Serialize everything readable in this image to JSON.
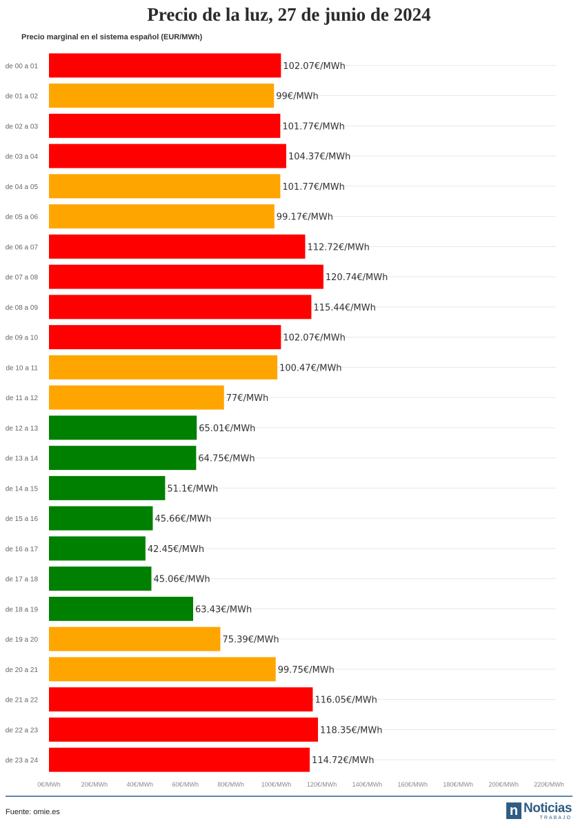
{
  "title": "Precio de la luz, 27 de junio de 2024",
  "subtitle": "Precio marginal en el sistema español (EUR/MWh)",
  "footer": {
    "source": "Fuente: omie.es"
  },
  "brand": {
    "mark": "n",
    "name": "Noticias",
    "sub": "TRABAJO"
  },
  "colors": {
    "high": "#ff0000",
    "mid": "#ffa500",
    "low": "#008000",
    "grid": "#e6e6e6",
    "footer_line": "#5b86ad"
  },
  "chart_data": {
    "type": "bar",
    "orientation": "horizontal",
    "title": "Precio de la luz, 27 de junio de 2024",
    "ylabel": "Precio marginal en el sistema español (EUR/MWh)",
    "xlim": [
      0,
      220
    ],
    "xticks": [
      0,
      20,
      40,
      60,
      80,
      100,
      120,
      140,
      160,
      180,
      200,
      220
    ],
    "tick_suffix": "€/MWh",
    "grid": true,
    "categories": [
      "de 00 a 01",
      "de 01 a 02",
      "de 02 a 03",
      "de 03 a 04",
      "de 04 a 05",
      "de 05 a 06",
      "de 06 a 07",
      "de 07 a 08",
      "de 08 a 09",
      "de 09 a 10",
      "de 10 a 11",
      "de 11 a 12",
      "de 12 a 13",
      "de 13 a 14",
      "de 14 a 15",
      "de 15 a 16",
      "de 16 a 17",
      "de 17 a 18",
      "de 18 a 19",
      "de 19 a 20",
      "de 20 a 21",
      "de 21 a 22",
      "de 22 a 23",
      "de 23 a 24"
    ],
    "values": [
      102.07,
      99,
      101.77,
      104.37,
      101.77,
      99.17,
      112.72,
      120.74,
      115.44,
      102.07,
      100.47,
      77,
      65.01,
      64.75,
      51.1,
      45.66,
      42.45,
      45.06,
      63.43,
      75.39,
      99.75,
      116.05,
      118.35,
      114.72
    ],
    "labels": [
      "102.07€/MWh",
      "99€/MWh",
      "101.77€/MWh",
      "104.37€/MWh",
      "101.77€/MWh",
      "99.17€/MWh",
      "112.72€/MWh",
      "120.74€/MWh",
      "115.44€/MWh",
      "102.07€/MWh",
      "100.47€/MWh",
      "77€/MWh",
      "65.01€/MWh",
      "64.75€/MWh",
      "51.1€/MWh",
      "45.66€/MWh",
      "42.45€/MWh",
      "45.06€/MWh",
      "63.43€/MWh",
      "75.39€/MWh",
      "99.75€/MWh",
      "116.05€/MWh",
      "118.35€/MWh",
      "114.72€/MWh"
    ],
    "bar_colors": [
      "high",
      "mid",
      "high",
      "high",
      "mid",
      "mid",
      "high",
      "high",
      "high",
      "high",
      "mid",
      "mid",
      "low",
      "low",
      "low",
      "low",
      "low",
      "low",
      "low",
      "mid",
      "mid",
      "high",
      "high",
      "high"
    ]
  }
}
